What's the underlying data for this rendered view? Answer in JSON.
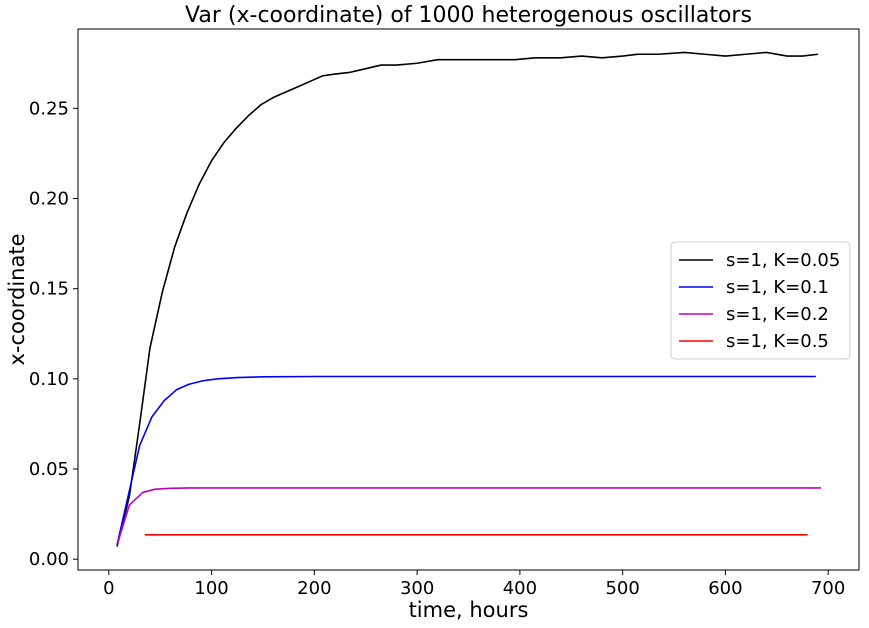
{
  "chart_data": {
    "type": "line",
    "title": "Var (x-coordinate) of 1000 heterogenous oscillators",
    "xlabel": "time, hours",
    "ylabel": "x-coordinate",
    "xlim": [
      -30,
      730
    ],
    "ylim": [
      -0.006,
      0.294
    ],
    "xticks": [
      0,
      100,
      200,
      300,
      400,
      500,
      600,
      700
    ],
    "yticks": [
      0.0,
      0.05,
      0.1,
      0.15,
      0.2,
      0.25
    ],
    "ytick_labels": [
      "0.00",
      "0.05",
      "0.10",
      "0.15",
      "0.20",
      "0.25"
    ],
    "grid": false,
    "legend_position": "center-right",
    "series": [
      {
        "name": "s=1, K=0.05",
        "color": "#000000",
        "points": [
          [
            8,
            0.007
          ],
          [
            20,
            0.035
          ],
          [
            30,
            0.075
          ],
          [
            40,
            0.117
          ],
          [
            52,
            0.148
          ],
          [
            64,
            0.173
          ],
          [
            76,
            0.192
          ],
          [
            88,
            0.208
          ],
          [
            100,
            0.221
          ],
          [
            112,
            0.231
          ],
          [
            124,
            0.239
          ],
          [
            136,
            0.246
          ],
          [
            148,
            0.252
          ],
          [
            160,
            0.256
          ],
          [
            172,
            0.259
          ],
          [
            184,
            0.262
          ],
          [
            196,
            0.265
          ],
          [
            208,
            0.268
          ],
          [
            220,
            0.269
          ],
          [
            235,
            0.27
          ],
          [
            250,
            0.272
          ],
          [
            265,
            0.274
          ],
          [
            280,
            0.274
          ],
          [
            300,
            0.275
          ],
          [
            320,
            0.277
          ],
          [
            345,
            0.277
          ],
          [
            370,
            0.277
          ],
          [
            395,
            0.277
          ],
          [
            415,
            0.278
          ],
          [
            440,
            0.278
          ],
          [
            460,
            0.279
          ],
          [
            480,
            0.278
          ],
          [
            500,
            0.279
          ],
          [
            515,
            0.28
          ],
          [
            535,
            0.28
          ],
          [
            560,
            0.281
          ],
          [
            580,
            0.28
          ],
          [
            600,
            0.279
          ],
          [
            620,
            0.28
          ],
          [
            640,
            0.281
          ],
          [
            660,
            0.279
          ],
          [
            675,
            0.279
          ],
          [
            690,
            0.28
          ]
        ]
      },
      {
        "name": "s=1, K=0.1",
        "color": "#0000ff",
        "points": [
          [
            8,
            0.008
          ],
          [
            18,
            0.033
          ],
          [
            30,
            0.063
          ],
          [
            42,
            0.079
          ],
          [
            54,
            0.088
          ],
          [
            66,
            0.094
          ],
          [
            78,
            0.097
          ],
          [
            92,
            0.099
          ],
          [
            106,
            0.1
          ],
          [
            125,
            0.1007
          ],
          [
            150,
            0.1011
          ],
          [
            200,
            0.1013
          ],
          [
            300,
            0.1013
          ],
          [
            400,
            0.1013
          ],
          [
            500,
            0.1013
          ],
          [
            600,
            0.1013
          ],
          [
            688,
            0.1013
          ]
        ]
      },
      {
        "name": "s=1, K=0.2",
        "color": "#bf00bf",
        "points": [
          [
            8,
            0.008
          ],
          [
            20,
            0.03
          ],
          [
            33,
            0.037
          ],
          [
            45,
            0.0388
          ],
          [
            60,
            0.0393
          ],
          [
            80,
            0.0395
          ],
          [
            120,
            0.0395
          ],
          [
            200,
            0.0395
          ],
          [
            400,
            0.0395
          ],
          [
            600,
            0.0395
          ],
          [
            693,
            0.0395
          ]
        ]
      },
      {
        "name": "s=1, K=0.5",
        "color": "#ff0000",
        "points": [
          [
            35,
            0.0135
          ],
          [
            100,
            0.0135
          ],
          [
            200,
            0.0135
          ],
          [
            300,
            0.0135
          ],
          [
            400,
            0.0135
          ],
          [
            500,
            0.0135
          ],
          [
            600,
            0.0135
          ],
          [
            680,
            0.0135
          ]
        ]
      }
    ]
  }
}
